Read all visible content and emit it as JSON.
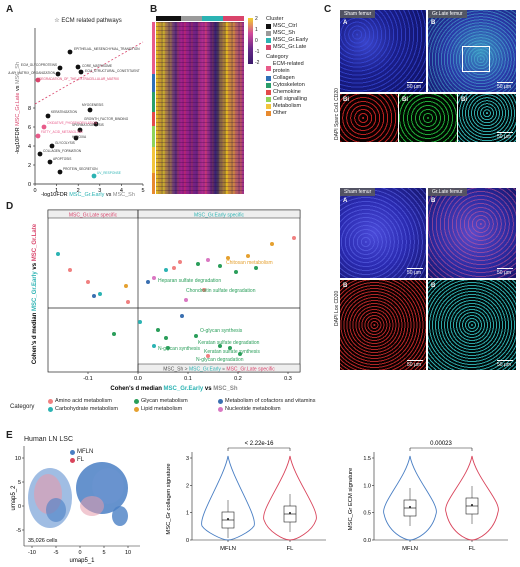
{
  "labels": {
    "a": "A",
    "b": "B",
    "c": "C",
    "d": "D",
    "e": "E"
  },
  "panel_a": {
    "title": "☆ ECM related pathways",
    "ylabel_parts": [
      "-log10FDR ",
      "MSC_Gr.Late",
      " vs ",
      "MSC_Sh"
    ],
    "xlabel_parts": [
      "-log10FDR ",
      "MSC_Gr.Early",
      " vs ",
      "MSC_Sh"
    ],
    "xticks": [
      "0",
      "1",
      "2",
      "3",
      "4",
      "5"
    ],
    "yticks": [
      "0",
      "2",
      "4",
      "6",
      "8"
    ],
    "point_labels": [
      "EPITHELIAL_MESENCHYMAL_TRANSITION",
      "CORE_MATRISOME",
      "ECM_STRUCTURAL_CONSTITUENT",
      "ECM_GLYCOPROTEINS",
      "EXTRACELLULAR_MATRIX_ORGANIZATION",
      "DEGRADATION_OF_THE_EXTRACELLULAR_MATRIX",
      "MYOGENESIS",
      "GROWTH_FACTOR_BINDING",
      "SPERMATOGENESIS",
      "HYPOXIA",
      "KERATINIZATION",
      "OXIDATIVE_PHOSPHORYLATION",
      "FATTY_ACID_METABOLISM",
      "GLYCOLYSIS",
      "COLLAGEN_FORMATION",
      "APOPTOSIS",
      "PROTEIN_SECRETION",
      "UV_RESPONSE"
    ]
  },
  "panel_b": {
    "legend_ticks": [
      "2",
      "1",
      "0",
      "-1",
      "-2"
    ],
    "cluster_title": "Cluster",
    "clusters": [
      {
        "name": "MSC_Ctrl",
        "color": "#111111"
      },
      {
        "name": "MSC_Sh",
        "color": "#9a9a9a"
      },
      {
        "name": "MSC_Gr.Early",
        "color": "#2bb3b3"
      },
      {
        "name": "MSC_Gr.Late",
        "color": "#d9446b"
      }
    ],
    "category_title": "Category",
    "categories": [
      {
        "name": "ECM-related protein",
        "color": "#e85b8a"
      },
      {
        "name": "Collagen",
        "color": "#2e6fb7"
      },
      {
        "name": "Cytoskeleton",
        "color": "#2a9e6a"
      },
      {
        "name": "Chemokine",
        "color": "#e34a4a"
      },
      {
        "name": "Cell signalling",
        "color": "#8fd35a"
      },
      {
        "name": "Metabolism",
        "color": "#f2c53c"
      },
      {
        "name": "Other",
        "color": "#e88a2e"
      }
    ]
  },
  "panel_c": {
    "top_titles": [
      "Sham femur",
      "Gr.Late femur"
    ],
    "top_side": "DAPI Sparc Col1 CD20",
    "bottom_titles": [
      "Sham femur",
      "Gr.Late femur"
    ],
    "bottom_side": "DAPI Lox CD20",
    "inner": {
      "a": "A",
      "b": "B",
      "bi": "Bi"
    },
    "scale": "50 µm"
  },
  "panel_d": {
    "region_left": "MSC_Gr.Late specific",
    "region_right": "MSC_Gr.Early specific",
    "region_bottom_parts": [
      "MSC_Sh > ",
      "MSC_Gr.Early",
      " ≈ ",
      "MSC_Gr.Late specific"
    ],
    "ylabel_parts": [
      "Cohen's d median ",
      "MSC_Gr.Early",
      " vs ",
      "MSC_Gr.Late"
    ],
    "xlabel_parts": [
      "Cohen's d median ",
      "MSC_Gr.Early",
      " vs ",
      "MSC_Sh"
    ],
    "xticks": [
      "-0.1",
      "0.0",
      "0.1",
      "0.2",
      "0.3"
    ],
    "pathways": [
      {
        "name": "Chitosan metabolism",
        "color": "#e5a02f"
      },
      {
        "name": "Heparan sulfate degradation",
        "color": "#2a9e5a"
      },
      {
        "name": "Chondroitin sulfate degradation",
        "color": "#2a9e5a"
      },
      {
        "name": "O-glycan synthesis",
        "color": "#2a9e5a"
      },
      {
        "name": "Keratan sulfate degradation",
        "color": "#2a9e5a"
      },
      {
        "name": "N-glycan synthesis",
        "color": "#2a9e5a"
      },
      {
        "name": "Keratan sulfate synthesis",
        "color": "#2a9e5a"
      },
      {
        "name": "N-glycan degradation",
        "color": "#2a9e5a"
      }
    ],
    "category_title": "Category",
    "legend": [
      {
        "name": "Amino acid metabolism",
        "color": "#f08080"
      },
      {
        "name": "Glycan metabolism",
        "color": "#2a9e5a"
      },
      {
        "name": "Metabolism of cofactors and vitamins",
        "color": "#3a6fb0"
      },
      {
        "name": "Carbohydrate metabolism",
        "color": "#2bb3b3"
      },
      {
        "name": "Lipid metabolism",
        "color": "#e5a02f"
      },
      {
        "name": "Nucleotide metabolism",
        "color": "#d977c2"
      }
    ]
  },
  "panel_e": {
    "umap_title": "Human LN LSC",
    "umap_legend": [
      {
        "name": "MFLN",
        "color": "#4a7fc4"
      },
      {
        "name": "FL",
        "color": "#d9445b"
      }
    ],
    "cells": "35,026 cells",
    "umap_xlabel": "umap5_1",
    "umap_ylabel": "umap5_2",
    "umap_xticks": [
      "-10",
      "-5",
      "0",
      "5",
      "10"
    ],
    "umap_yticks": [
      "10",
      "5",
      "0",
      "-5"
    ],
    "violin1": {
      "ylabel": "MSC_Gr collagen signature",
      "pvalue": "< 2.22e-16",
      "yticks": [
        "3",
        "2",
        "1",
        "0"
      ],
      "groups": [
        "MFLN",
        "FL"
      ]
    },
    "violin2": {
      "ylabel": "MSC_Gr ECM signature",
      "pvalue": "0.00023",
      "yticks": [
        "1.5",
        "1.0",
        "0.5",
        "0.0"
      ],
      "groups": [
        "MFLN",
        "FL"
      ]
    }
  },
  "colors": {
    "early": "#2bb3b3",
    "late": "#d9446b",
    "sham": "#888888"
  }
}
